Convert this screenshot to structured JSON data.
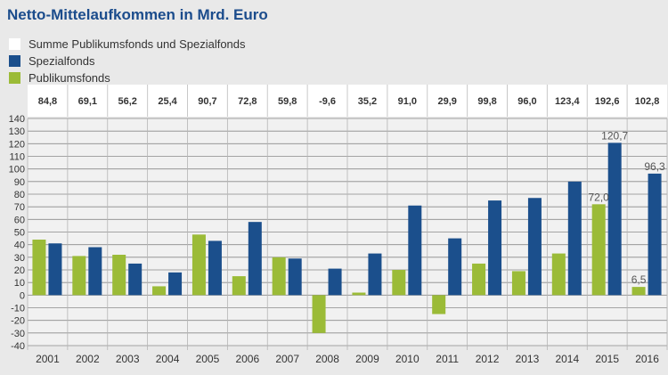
{
  "title": "Netto-Mittelaufkommen in Mrd. Euro",
  "legend": [
    {
      "label": "Summe Publikumsfonds und Spezialfonds",
      "color": "#ffffff"
    },
    {
      "label": "Spezialfonds",
      "color": "#1b4f8c"
    },
    {
      "label": "Publikumsfonds",
      "color": "#9bbb37"
    }
  ],
  "chart_data": {
    "type": "bar",
    "title": "Netto-Mittelaufkommen in Mrd. Euro",
    "categories": [
      "2001",
      "2002",
      "2003",
      "2004",
      "2005",
      "2006",
      "2007",
      "2008",
      "2009",
      "2010",
      "2011",
      "2012",
      "2013",
      "2014",
      "2015",
      "2016"
    ],
    "totals": [
      "84,8",
      "69,1",
      "56,2",
      "25,4",
      "90,7",
      "72,8",
      "59,8",
      "-9,6",
      "35,2",
      "91,0",
      "29,9",
      "99,8",
      "96,0",
      "123,4",
      "192,6",
      "102,8"
    ],
    "series": [
      {
        "name": "Publikumsfonds",
        "color": "#9bbb37",
        "values": [
          44,
          31,
          32,
          7,
          48,
          15,
          30,
          -30,
          2,
          20,
          -15,
          25,
          19,
          33,
          72.0,
          6.5
        ]
      },
      {
        "name": "Spezialfonds",
        "color": "#1b4f8c",
        "values": [
          41,
          38,
          25,
          18,
          43,
          58,
          29,
          21,
          33,
          71,
          45,
          75,
          77,
          90,
          120.7,
          96.3
        ]
      }
    ],
    "data_labels": [
      {
        "series": "Publikumsfonds",
        "category": "2015",
        "text": "72,0"
      },
      {
        "series": "Publikumsfonds",
        "category": "2016",
        "text": "6,5"
      },
      {
        "series": "Spezialfonds",
        "category": "2015",
        "text": "120,7"
      },
      {
        "series": "Spezialfonds",
        "category": "2016",
        "text": "96,3"
      }
    ],
    "yticks": [
      140,
      130,
      120,
      110,
      100,
      90,
      80,
      70,
      60,
      50,
      40,
      30,
      20,
      10,
      0,
      -10,
      -20,
      -30,
      -40
    ],
    "ylim": [
      -40,
      140
    ],
    "grid": true,
    "legend_position": "top-left"
  }
}
